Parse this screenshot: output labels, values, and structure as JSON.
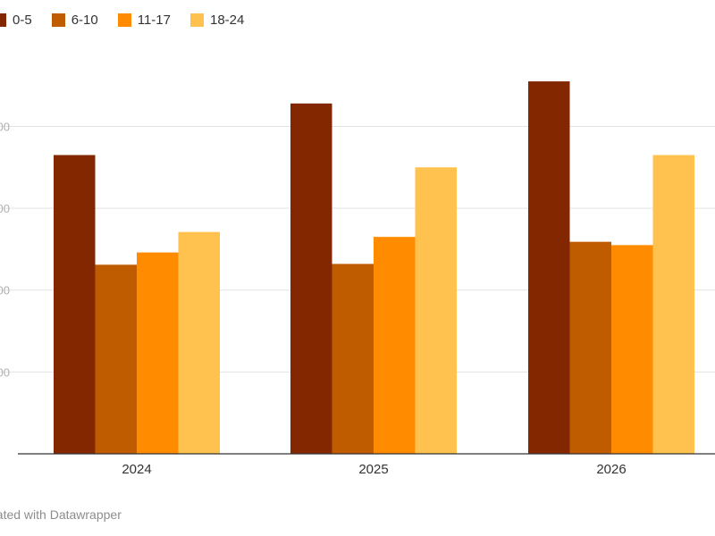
{
  "chart_data": {
    "type": "bar",
    "categories": [
      "2024",
      "2025",
      "2026"
    ],
    "series": [
      {
        "name": "0-5",
        "color": "#822700",
        "values": [
          365,
          428,
          455
        ]
      },
      {
        "name": "6-10",
        "color": "#c05c00",
        "values": [
          231,
          232,
          259
        ]
      },
      {
        "name": "11-17",
        "color": "#ff8c00",
        "values": [
          246,
          265,
          255
        ]
      },
      {
        "name": "18-24",
        "color": "#ffc24f",
        "values": [
          271,
          350,
          365
        ]
      }
    ],
    "yticks": [
      100,
      200,
      300,
      400
    ],
    "ytick_labels": [
      "00",
      "00",
      "00",
      "00"
    ],
    "ylim": [
      0,
      460
    ],
    "grid": true,
    "legend_position": "top-left"
  },
  "footer": {
    "credit": "eated with Datawrapper"
  }
}
